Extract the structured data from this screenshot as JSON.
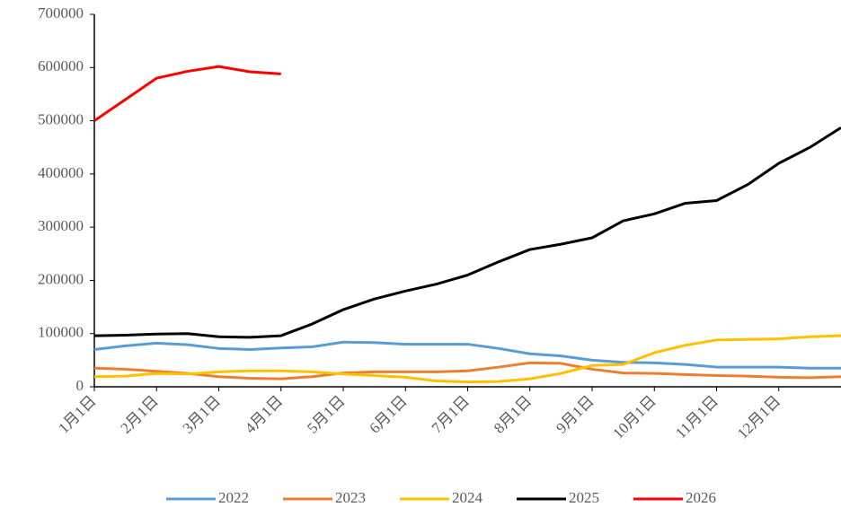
{
  "chart_data": {
    "type": "line",
    "categories": [
      "1月1日",
      null,
      "2月1日",
      null,
      "3月1日",
      null,
      "4月1日",
      null,
      "5月1日",
      null,
      "6月1日",
      null,
      "7月1日",
      null,
      "8月1日",
      null,
      "9月1日",
      null,
      "10月1日",
      null,
      "11月1日",
      null,
      "12月1日",
      null,
      null
    ],
    "series": [
      {
        "name": "2022",
        "color": "#5b9bd5",
        "values": [
          70000,
          77000,
          82000,
          79000,
          72000,
          70000,
          73000,
          75000,
          84000,
          83000,
          80000,
          80000,
          80000,
          72000,
          62000,
          58000,
          50000,
          46000,
          45000,
          42000,
          37000,
          37000,
          37000,
          35000,
          35000
        ]
      },
      {
        "name": "2023",
        "color": "#ed7d31",
        "values": [
          35000,
          33000,
          29000,
          25000,
          19000,
          16000,
          15000,
          19000,
          26000,
          28000,
          28000,
          28000,
          30000,
          37000,
          45000,
          44000,
          33000,
          26000,
          25000,
          23000,
          21000,
          20000,
          18000,
          17000,
          19000
        ]
      },
      {
        "name": "2024",
        "color": "#ffc000",
        "values": [
          19000,
          20000,
          25000,
          24000,
          28000,
          30000,
          30000,
          28000,
          24000,
          21000,
          18000,
          11000,
          9000,
          10000,
          15000,
          25000,
          40000,
          42000,
          64000,
          78000,
          88000,
          89000,
          90000,
          94000,
          96000
        ]
      },
      {
        "name": "2025",
        "color": "#000000",
        "values": [
          96000,
          97000,
          99000,
          100000,
          94000,
          93000,
          96000,
          118000,
          145000,
          165000,
          180000,
          193000,
          210000,
          235000,
          258000,
          268000,
          280000,
          312000,
          325000,
          345000,
          350000,
          380000,
          420000,
          450000,
          487000
        ]
      },
      {
        "name": "2026",
        "color": "#ff0000",
        "values": [
          500000,
          540000,
          580000,
          593000,
          602000,
          592000,
          588000,
          null,
          null,
          null,
          null,
          null,
          null,
          null,
          null,
          null,
          null,
          null,
          null,
          null,
          null,
          null,
          null,
          null,
          null
        ]
      }
    ],
    "ylim": [
      0,
      700000
    ],
    "yticks": [
      0,
      100000,
      200000,
      300000,
      400000,
      500000,
      600000,
      700000
    ],
    "legend": "bottom"
  }
}
